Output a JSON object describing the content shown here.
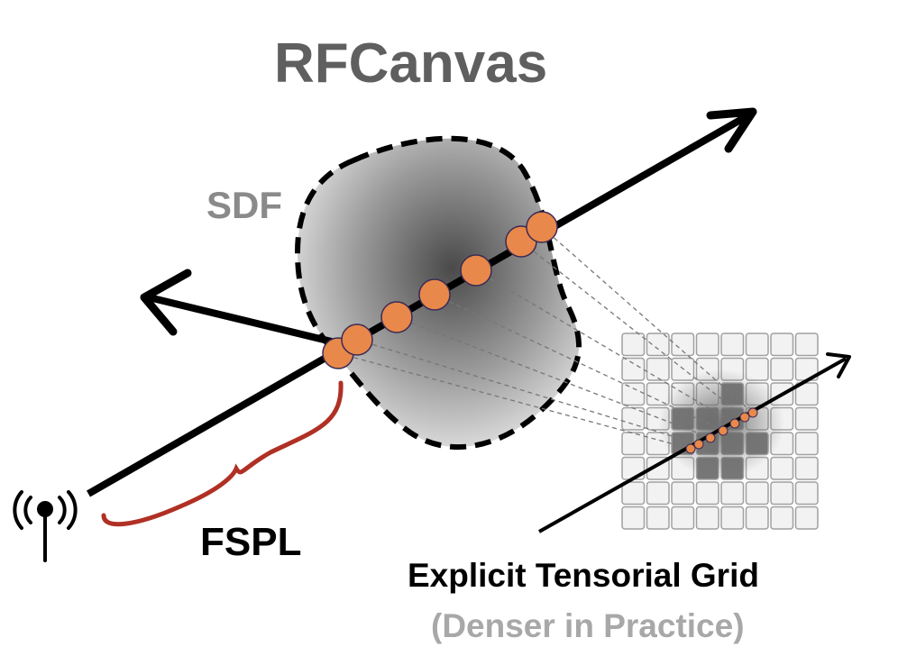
{
  "title": "RFCanvas",
  "labels": {
    "sdf": "SDF",
    "fspl": "FSPL",
    "grid": "Explicit Tensorial Grid",
    "grid_note": "(Denser in Practice)"
  },
  "colors": {
    "title": "#5f5f5f",
    "sdf_label": "#8a8a8a",
    "sample_point": "#e8884a",
    "sample_outline": "#3a2a55",
    "fspl_brace": "#b03024",
    "grid_cell": "#f2f2f2",
    "grid_cell_border": "#a0a0a0",
    "grid_cell_dark": "#777777",
    "projection_line": "#777777"
  },
  "icons": [
    "antenna-icon"
  ],
  "grid": {
    "rows": 8,
    "cols": 8
  }
}
